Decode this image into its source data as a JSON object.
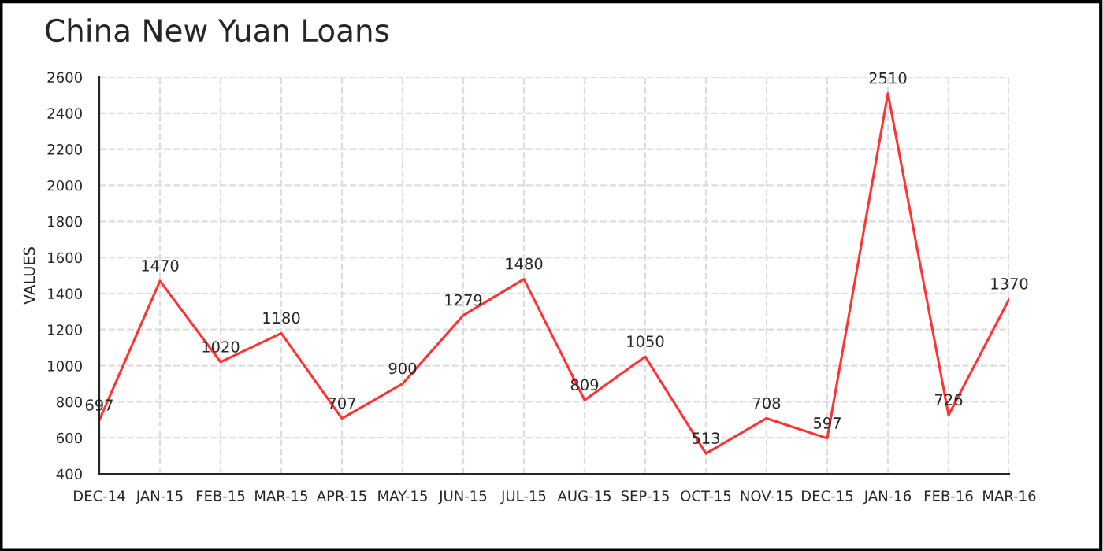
{
  "chart_data": {
    "type": "line",
    "title": "China New Yuan Loans",
    "ylabel": "VALUES",
    "categories": [
      "DEC-14",
      "JAN-15",
      "FEB-15",
      "MAR-15",
      "APR-15",
      "MAY-15",
      "JUN-15",
      "JUL-15",
      "AUG-15",
      "SEP-15",
      "OCT-15",
      "NOV-15",
      "DEC-15",
      "JAN-16",
      "FEB-16",
      "MAR-16"
    ],
    "series": [
      {
        "color": "#ff3333",
        "values": [
          697,
          1470,
          1020,
          1180,
          707,
          900,
          1279,
          1480,
          809,
          1050,
          513,
          708,
          597,
          2510,
          726,
          1370
        ]
      }
    ],
    "ylim": [
      400,
      2600
    ],
    "yticks": [
      400,
      600,
      800,
      1000,
      1200,
      1400,
      1600,
      1800,
      2000,
      2200,
      2400,
      2600
    ],
    "grid": true,
    "data_labels": true,
    "marker": "none",
    "line_style": "solid"
  }
}
